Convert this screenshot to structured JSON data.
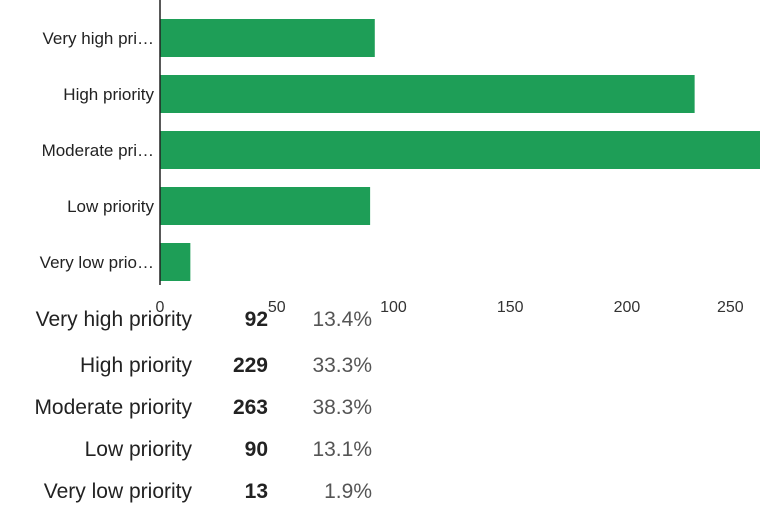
{
  "chart_data": {
    "type": "bar",
    "orientation": "horizontal",
    "categories": [
      "Very high pri…",
      "High priority",
      "Moderate pri…",
      "Low priority",
      "Very low prio…"
    ],
    "values": [
      92,
      229,
      263,
      90,
      13
    ],
    "xticks": [
      0,
      50,
      100,
      150,
      200,
      250
    ],
    "xlim": [
      0,
      257
    ],
    "bar_color": "#1e9e57",
    "grid": false,
    "legend": "none"
  },
  "summary": {
    "rows": [
      {
        "label": "Very high priority",
        "count": "92",
        "percent": "13.4%"
      },
      {
        "label": "High priority",
        "count": "229",
        "percent": "33.3%"
      },
      {
        "label": "Moderate priority",
        "count": "263",
        "percent": "38.3%"
      },
      {
        "label": "Low priority",
        "count": "90",
        "percent": "13.1%"
      },
      {
        "label": "Very low priority",
        "count": "13",
        "percent": "1.9%"
      }
    ]
  }
}
